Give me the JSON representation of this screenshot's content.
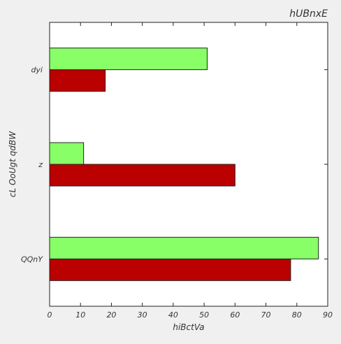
{
  "chart_data": {
    "type": "bar",
    "orientation": "horizontal",
    "title": "hUBnxE",
    "xlabel": "hiBctVa",
    "ylabel": "cL OoUgt qdBW",
    "categories": [
      "QQnY",
      "z",
      "dyi"
    ],
    "series": [
      {
        "values": [
          78,
          60,
          18
        ],
        "color": "#bb0000"
      },
      {
        "values": [
          87,
          11,
          51
        ],
        "color": "#88ff66"
      }
    ],
    "xlim": [
      0,
      90
    ],
    "xticks": [
      0,
      10,
      20,
      30,
      40,
      50,
      60,
      70,
      80,
      90
    ],
    "grid": false,
    "legend": "none"
  }
}
